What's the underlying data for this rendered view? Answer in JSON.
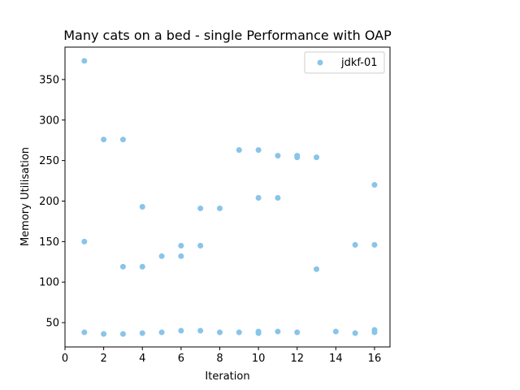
{
  "chart_data": {
    "type": "scatter",
    "title": "Many cats on a bed - single Performance with OAP",
    "xlabel": "Iteration",
    "ylabel": "Memory Utilisation",
    "xlim": [
      0,
      16.8
    ],
    "ylim": [
      20,
      390
    ],
    "xticks": [
      0,
      2,
      4,
      6,
      8,
      10,
      12,
      14,
      16
    ],
    "yticks": [
      50,
      100,
      150,
      200,
      250,
      300,
      350
    ],
    "grid": false,
    "legend_position": "top-right",
    "series": [
      {
        "name": "jdkf-01",
        "color": "#89c4ea",
        "points": [
          [
            1,
            373
          ],
          [
            1,
            150
          ],
          [
            1,
            38
          ],
          [
            2,
            276
          ],
          [
            2,
            36
          ],
          [
            3,
            276
          ],
          [
            3,
            119
          ],
          [
            3,
            36
          ],
          [
            4,
            193
          ],
          [
            4,
            119
          ],
          [
            4,
            37
          ],
          [
            5,
            132
          ],
          [
            5,
            38
          ],
          [
            6,
            145
          ],
          [
            6,
            132
          ],
          [
            6,
            40
          ],
          [
            7,
            191
          ],
          [
            7,
            145
          ],
          [
            7,
            40
          ],
          [
            8,
            191
          ],
          [
            8,
            38
          ],
          [
            9,
            263
          ],
          [
            9,
            38
          ],
          [
            10,
            263
          ],
          [
            10,
            204
          ],
          [
            10,
            39
          ],
          [
            10,
            37
          ],
          [
            11,
            256
          ],
          [
            11,
            204
          ],
          [
            11,
            39
          ],
          [
            12,
            256
          ],
          [
            12,
            254
          ],
          [
            12,
            38
          ],
          [
            13,
            254
          ],
          [
            13,
            116
          ],
          [
            14,
            39
          ],
          [
            15,
            146
          ],
          [
            15,
            37
          ],
          [
            16,
            220
          ],
          [
            16,
            146
          ],
          [
            16,
            41
          ],
          [
            16,
            38
          ]
        ]
      }
    ]
  }
}
